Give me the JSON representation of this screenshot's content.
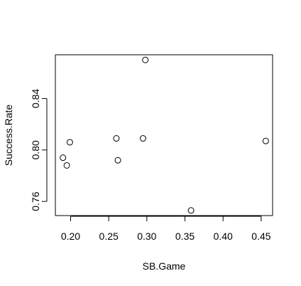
{
  "chart_data": {
    "type": "scatter",
    "title": "",
    "xlabel": "SB.Game",
    "ylabel": "Success.Rate",
    "xlim": [
      0.18,
      0.465
    ],
    "ylim": [
      0.749,
      0.874
    ],
    "xticks": [
      {
        "value": 0.2,
        "label": "0.20"
      },
      {
        "value": 0.25,
        "label": "0.25"
      },
      {
        "value": 0.3,
        "label": "0.30"
      },
      {
        "value": 0.35,
        "label": "0.35"
      },
      {
        "value": 0.4,
        "label": "0.40"
      },
      {
        "value": 0.45,
        "label": "0.45"
      }
    ],
    "yticks": [
      {
        "value": 0.76,
        "label": "0.76"
      },
      {
        "value": 0.8,
        "label": "0.80"
      },
      {
        "value": 0.84,
        "label": "0.84"
      }
    ],
    "grid": false,
    "legend": "none",
    "points": [
      {
        "x": 0.19,
        "y": 0.794
      },
      {
        "x": 0.195,
        "y": 0.788
      },
      {
        "x": 0.199,
        "y": 0.806
      },
      {
        "x": 0.26,
        "y": 0.809
      },
      {
        "x": 0.262,
        "y": 0.792
      },
      {
        "x": 0.295,
        "y": 0.809
      },
      {
        "x": 0.298,
        "y": 0.87
      },
      {
        "x": 0.358,
        "y": 0.753
      },
      {
        "x": 0.456,
        "y": 0.807
      }
    ]
  },
  "colors": {
    "background": "#ffffff",
    "ink": "#000000"
  }
}
